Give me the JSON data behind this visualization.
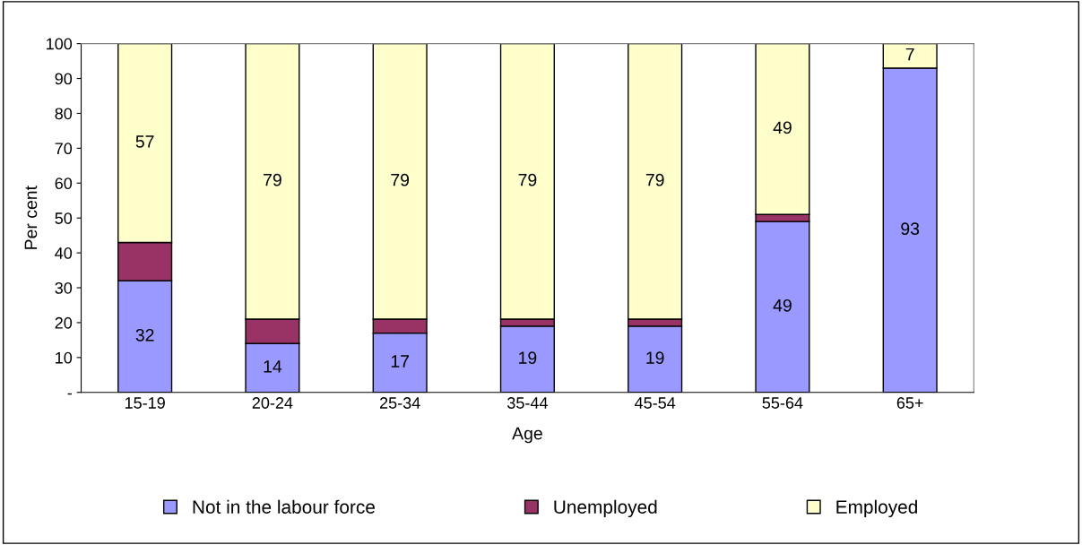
{
  "chart_data": {
    "type": "bar",
    "stacked": true,
    "xlabel": "Age",
    "ylabel": "Per cent",
    "categories": [
      "15-19",
      "20-24",
      "25-34",
      "35-44",
      "45-54",
      "55-64",
      "65+"
    ],
    "series": [
      {
        "name": "Not in the labour force",
        "color": "#9999ff",
        "values": [
          32,
          14,
          17,
          19,
          19,
          49,
          93
        ],
        "value_labels": [
          "32",
          "14",
          "17",
          "19",
          "19",
          "49",
          "93"
        ]
      },
      {
        "name": "Unemployed",
        "color": "#993366",
        "values": [
          11,
          7,
          4,
          2,
          2,
          2,
          0
        ]
      },
      {
        "name": "Employed",
        "color": "#ffffcc",
        "values": [
          57,
          79,
          79,
          79,
          79,
          49,
          7
        ],
        "value_labels": [
          "57",
          "79",
          "79",
          "79",
          "79",
          "49",
          "7"
        ]
      }
    ],
    "ylim": [
      0,
      100
    ],
    "yticks": [
      {
        "value": 0,
        "label": "-"
      },
      10,
      20,
      30,
      40,
      50,
      60,
      70,
      80,
      90,
      100
    ],
    "grid": false,
    "legend": "bottom"
  }
}
